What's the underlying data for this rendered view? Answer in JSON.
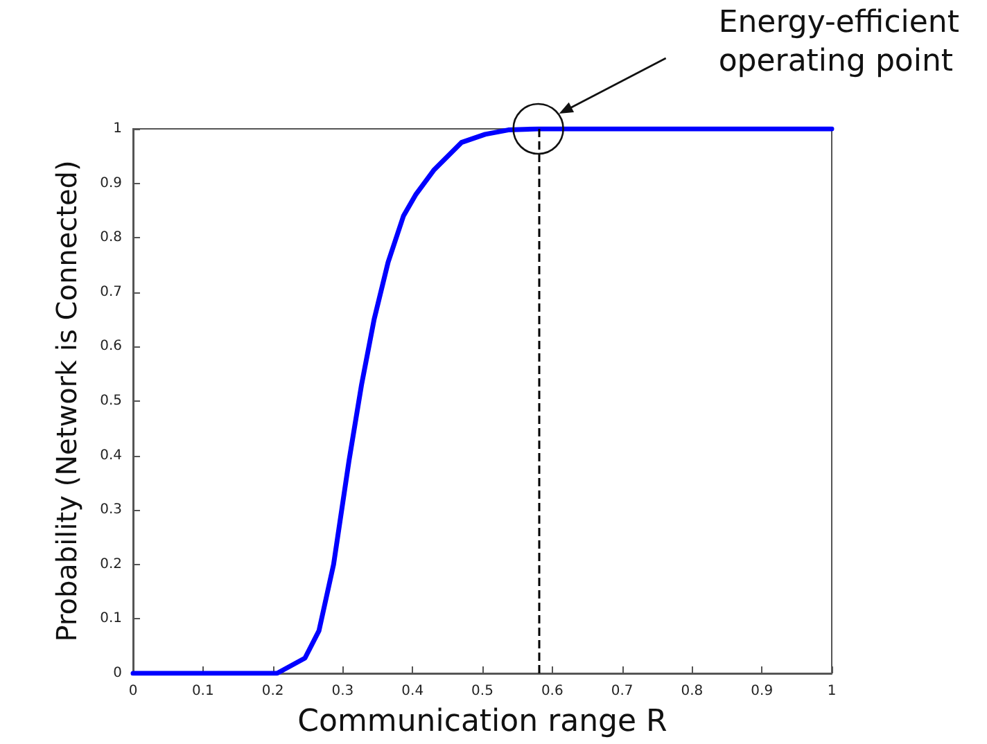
{
  "chart_data": {
    "type": "line",
    "xlabel": "Communication range R",
    "ylabel": "Probability (Network is Connected)",
    "x": [
      0,
      0.206,
      0.246,
      0.266,
      0.287,
      0.309,
      0.327,
      0.345,
      0.365,
      0.387,
      0.405,
      0.431,
      0.47,
      0.504,
      0.537,
      0.58,
      1
    ],
    "series": [
      {
        "color": "#0000ff",
        "values": [
          0,
          0,
          0.028,
          0.078,
          0.2,
          0.39,
          0.53,
          0.65,
          0.755,
          0.84,
          0.88,
          0.925,
          0.975,
          0.99,
          0.998,
          1,
          1
        ]
      }
    ],
    "xlim": [
      0,
      1
    ],
    "xticks": [
      0,
      0.1,
      0.2,
      0.3,
      0.4,
      0.5,
      0.6,
      0.7,
      0.8,
      0.9,
      1
    ],
    "ylim": [
      0,
      1
    ],
    "yticks": [
      0,
      0.1,
      0.2,
      0.3,
      0.4,
      0.5,
      0.6,
      0.7,
      0.8,
      0.9,
      1
    ],
    "ref_lines": [
      {
        "axis": "x",
        "value": 0.58,
        "color": "#000000",
        "line_style": "dashed"
      }
    ],
    "annotations": [
      "Energy-efficient\noperating point"
    ],
    "grid": false,
    "marker": "none",
    "line_style": "solid"
  }
}
